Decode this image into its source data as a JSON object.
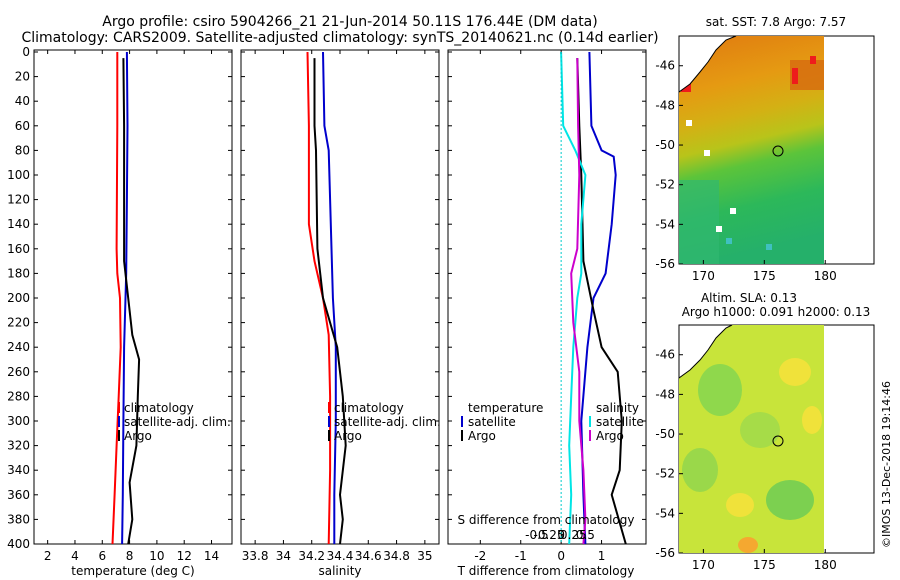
{
  "header": {
    "title_line1": "Argo profile: csiro 5904266_21 21-Jun-2014 50.11S 176.44E (DM data)",
    "title_line2": "Climatology: CARS2009. Satellite-adjusted climatology: synTS_20140621.nc (0.14d earlier)"
  },
  "colors": {
    "climatology": "#ff0000",
    "satellite": "#0000cc",
    "argo": "#000000",
    "salinity_sat": "#00e5e5",
    "salinity_argo": "#cc00cc"
  },
  "depth_axis": {
    "ticks": [
      "0",
      "20",
      "40",
      "60",
      "80",
      "100",
      "120",
      "140",
      "160",
      "180",
      "200",
      "220",
      "240",
      "260",
      "280",
      "300",
      "320",
      "340",
      "360",
      "380",
      "400"
    ]
  },
  "chart_data": [
    {
      "id": "temperature",
      "type": "line",
      "xlabel": "temperature (deg C)",
      "ylabel": "depth (dbar)",
      "xlim": [
        1,
        15.5
      ],
      "ylim": [
        400,
        0
      ],
      "x_ticks": [
        2,
        4,
        6,
        8,
        10,
        12,
        14
      ],
      "x_tick_labels": [
        "2",
        "4",
        "6",
        "8",
        "10",
        "12",
        "14"
      ],
      "legend": {
        "position": "middle-right",
        "entries": [
          "climatology",
          "satellite-adj. clim.",
          "Argo"
        ]
      },
      "series": [
        {
          "name": "climatology",
          "color": "#ff0000",
          "points": [
            [
              7.1,
              0
            ],
            [
              7.1,
              60
            ],
            [
              7.05,
              160
            ],
            [
              7.1,
              180
            ],
            [
              7.3,
              200
            ],
            [
              7.35,
              240
            ],
            [
              7.2,
              280
            ],
            [
              7.05,
              320
            ],
            [
              6.9,
              360
            ],
            [
              6.75,
              400
            ]
          ]
        },
        {
          "name": "satellite-adj. clim.",
          "color": "#0000cc",
          "points": [
            [
              7.8,
              0
            ],
            [
              7.85,
              60
            ],
            [
              7.8,
              120
            ],
            [
              7.75,
              180
            ],
            [
              7.6,
              240
            ],
            [
              7.55,
              300
            ],
            [
              7.5,
              360
            ],
            [
              7.45,
              400
            ]
          ]
        },
        {
          "name": "Argo",
          "color": "#000000",
          "points": [
            [
              7.55,
              5
            ],
            [
              7.6,
              60
            ],
            [
              7.6,
              170
            ],
            [
              7.9,
              200
            ],
            [
              8.2,
              230
            ],
            [
              8.7,
              250
            ],
            [
              8.6,
              280
            ],
            [
              8.5,
              320
            ],
            [
              8.0,
              350
            ],
            [
              8.2,
              380
            ],
            [
              7.9,
              400
            ]
          ]
        }
      ]
    },
    {
      "id": "salinity",
      "type": "line",
      "xlabel": "salinity",
      "ylabel": "depth (dbar)",
      "xlim": [
        33.7,
        35.1
      ],
      "ylim": [
        400,
        0
      ],
      "x_ticks": [
        33.8,
        34,
        34.2,
        34.4,
        34.6,
        34.8,
        35
      ],
      "x_tick_labels": [
        "33.8",
        "34",
        "34.2",
        "34.4",
        "34.6",
        "34.8",
        "35"
      ],
      "legend": {
        "position": "middle-right",
        "entries": [
          "climatology",
          "satellite-adj. clim.",
          "Argo"
        ]
      },
      "series": [
        {
          "name": "climatology",
          "color": "#ff0000",
          "points": [
            [
              34.17,
              0
            ],
            [
              34.18,
              60
            ],
            [
              34.18,
              140
            ],
            [
              34.22,
              170
            ],
            [
              34.28,
              200
            ],
            [
              34.32,
              230
            ],
            [
              34.33,
              280
            ],
            [
              34.33,
              340
            ],
            [
              34.32,
              400
            ]
          ]
        },
        {
          "name": "satellite-adj. clim.",
          "color": "#0000cc",
          "points": [
            [
              34.28,
              0
            ],
            [
              34.29,
              60
            ],
            [
              34.32,
              80
            ],
            [
              34.33,
              120
            ],
            [
              34.34,
              160
            ],
            [
              34.35,
              200
            ],
            [
              34.37,
              240
            ],
            [
              34.37,
              300
            ],
            [
              34.36,
              360
            ],
            [
              34.36,
              400
            ]
          ]
        },
        {
          "name": "Argo",
          "color": "#000000",
          "points": [
            [
              34.22,
              5
            ],
            [
              34.22,
              60
            ],
            [
              34.23,
              80
            ],
            [
              34.24,
              160
            ],
            [
              34.28,
              200
            ],
            [
              34.33,
              220
            ],
            [
              34.38,
              240
            ],
            [
              34.42,
              280
            ],
            [
              34.44,
              320
            ],
            [
              34.4,
              360
            ],
            [
              34.42,
              380
            ],
            [
              34.4,
              400
            ]
          ]
        }
      ]
    },
    {
      "id": "difference",
      "type": "line",
      "xlabel": "T difference from climatology",
      "xlabel2": "S difference from climatology",
      "ylabel": "depth (dbar)",
      "xlim": [
        -2.8,
        2.1
      ],
      "ylim": [
        400,
        0
      ],
      "x_ticks": [
        -2,
        -1,
        0,
        1
      ],
      "x_tick_labels": [
        "-2",
        "-1",
        "0",
        "1"
      ],
      "x2_ticks": [
        -0.5,
        -0.25,
        0,
        0.25,
        0.5
      ],
      "x2_tick_labels": [
        "-0.5",
        "-0.25",
        "0",
        "0.25",
        "0.5"
      ],
      "legend_t": {
        "position": "lower-left",
        "title": "temperature",
        "entries": [
          "satellite",
          "Argo"
        ]
      },
      "legend_s": {
        "position": "lower-right",
        "title": "salinity",
        "entries": [
          "satellite",
          "Argo"
        ]
      },
      "series": [
        {
          "name": "T satellite",
          "color": "#0000cc",
          "points": [
            [
              0.7,
              0
            ],
            [
              0.75,
              60
            ],
            [
              1.0,
              80
            ],
            [
              1.3,
              85
            ],
            [
              1.35,
              100
            ],
            [
              1.25,
              140
            ],
            [
              1.1,
              180
            ],
            [
              0.8,
              200
            ],
            [
              0.65,
              240
            ],
            [
              0.5,
              300
            ],
            [
              0.55,
              360
            ],
            [
              0.6,
              400
            ]
          ]
        },
        {
          "name": "T Argo",
          "color": "#000000",
          "points": [
            [
              0.4,
              5
            ],
            [
              0.45,
              60
            ],
            [
              0.5,
              100
            ],
            [
              0.55,
              170
            ],
            [
              0.8,
              210
            ],
            [
              1.0,
              240
            ],
            [
              1.4,
              260
            ],
            [
              1.5,
              300
            ],
            [
              1.45,
              340
            ],
            [
              1.25,
              360
            ],
            [
              1.6,
              400
            ]
          ]
        },
        {
          "name": "S satellite",
          "color": "#00e5e5",
          "points": [
            [
              0.0,
              0
            ],
            [
              0.05,
              60
            ],
            [
              0.35,
              80
            ],
            [
              0.6,
              100
            ],
            [
              0.5,
              140
            ],
            [
              0.5,
              180
            ],
            [
              0.4,
              200
            ],
            [
              0.3,
              240
            ],
            [
              0.25,
              280
            ],
            [
              0.2,
              320
            ],
            [
              0.25,
              360
            ],
            [
              0.2,
              400
            ]
          ]
        },
        {
          "name": "S Argo",
          "color": "#cc00cc",
          "points": [
            [
              0.4,
              5
            ],
            [
              0.42,
              60
            ],
            [
              0.45,
              100
            ],
            [
              0.4,
              160
            ],
            [
              0.25,
              180
            ],
            [
              0.3,
              220
            ],
            [
              0.45,
              260
            ],
            [
              0.45,
              300
            ],
            [
              0.55,
              340
            ],
            [
              0.6,
              380
            ],
            [
              0.55,
              400
            ]
          ]
        }
      ]
    },
    {
      "id": "sst_map",
      "type": "heatmap",
      "title": "sat. SST: 7.8 Argo: 7.57",
      "xlim": [
        168,
        184
      ],
      "ylim": [
        -56,
        -44.5
      ],
      "x_ticks": [
        170,
        175,
        180
      ],
      "x_tick_labels": [
        "170",
        "175",
        "180"
      ],
      "y_ticks": [
        -46,
        -48,
        -50,
        -52,
        -54,
        -56
      ],
      "y_tick_labels": [
        "-46",
        "-48",
        "-50",
        "-52",
        "-54",
        "-56"
      ],
      "argo_position": [
        176.44,
        -50.11
      ]
    },
    {
      "id": "sla_map",
      "type": "heatmap",
      "title": "Altim. SLA: 0.13",
      "subtitle": "Argo h1000: 0.091 h2000: 0.13",
      "xlim": [
        168,
        184
      ],
      "ylim": [
        -56,
        -44.5
      ],
      "x_ticks": [
        170,
        175,
        180
      ],
      "x_tick_labels": [
        "170",
        "175",
        "180"
      ],
      "y_ticks": [
        -46,
        -48,
        -50,
        -52,
        -54,
        -56
      ],
      "y_tick_labels": [
        "-46",
        "-48",
        "-50",
        "-52",
        "-54",
        "-56"
      ],
      "argo_position": [
        176.44,
        -50.11
      ]
    }
  ],
  "watermark": "©IMOS 13-Dec-2018 19:14:46"
}
